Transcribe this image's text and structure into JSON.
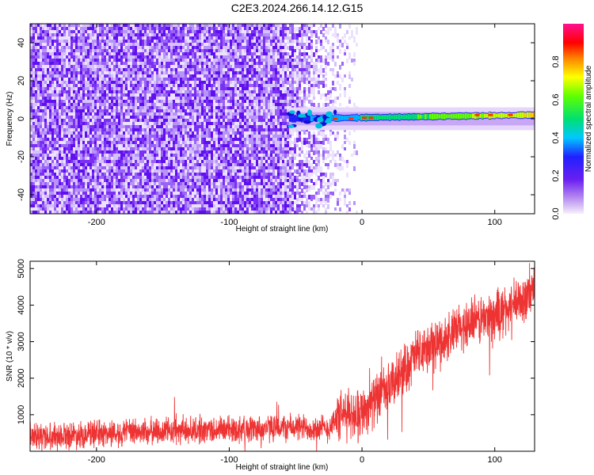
{
  "title": "C2E3.2024.266.14.12.G15",
  "chart_data": [
    {
      "type": "heatmap",
      "xlabel": "Height of straight line (km)",
      "ylabel": "Frequency (Hz)",
      "colorbar_label": "Normalized spectral amplitude",
      "xlim": [
        -250,
        130
      ],
      "ylim": [
        -50,
        50
      ],
      "x_ticks": [
        -200,
        -100,
        0,
        100
      ],
      "y_ticks": [
        -40,
        -20,
        0,
        20,
        40
      ],
      "colorbar_range": [
        0.0,
        1.0
      ],
      "colorbar_ticks": [
        0.0,
        0.2,
        0.4,
        0.6,
        0.8
      ],
      "noise_region_x": [
        -250,
        -25
      ],
      "signal_start_x": -55,
      "signal_track": [
        {
          "x": -55,
          "y": 0
        },
        {
          "x": -30,
          "y": 0
        },
        {
          "x": 0,
          "y": 0
        },
        {
          "x": 50,
          "y": 1
        },
        {
          "x": 100,
          "y": 2
        },
        {
          "x": 130,
          "y": 2
        }
      ]
    },
    {
      "type": "line",
      "xlabel": "Height of straight line (km)",
      "ylabel": "SNR (10 * v/v)",
      "xlim": [
        -250,
        130
      ],
      "ylim": [
        0,
        5200
      ],
      "x_ticks": [
        -200,
        -100,
        0,
        100
      ],
      "y_ticks": [
        1000,
        2000,
        3000,
        4000,
        5000
      ],
      "series": [
        {
          "color": "#ee3333",
          "x": [
            -250,
            -200,
            -150,
            -100,
            -50,
            -25,
            -20,
            0,
            20,
            40,
            60,
            80,
            100,
            120,
            130
          ],
          "y": [
            400,
            480,
            550,
            600,
            650,
            620,
            900,
            1100,
            1700,
            2600,
            3000,
            3500,
            3700,
            4100,
            4450
          ]
        }
      ]
    }
  ]
}
